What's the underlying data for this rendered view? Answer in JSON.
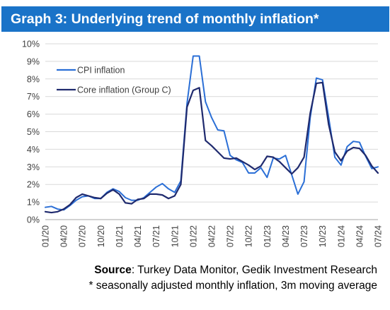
{
  "header": {
    "title": "Graph 3: Underlying trend of monthly inflation*"
  },
  "footer": {
    "source_label": "Source",
    "source_text": ": Turkey Data Monitor, Gedik Investment Research",
    "note": "* seasonally adjusted monthly inflation, 3m moving average"
  },
  "chart_data": {
    "type": "line",
    "title": "Graph 3: Underlying trend of monthly inflation*",
    "xlabel": "",
    "ylabel": "",
    "ylim": [
      0,
      10
    ],
    "y_ticks": [
      "0%",
      "1%",
      "2%",
      "3%",
      "4%",
      "5%",
      "6%",
      "7%",
      "8%",
      "9%",
      "10%"
    ],
    "x_ticks": [
      "01/20",
      "04/20",
      "07/20",
      "10/20",
      "01/21",
      "04/21",
      "07/21",
      "10/21",
      "01/22",
      "04/22",
      "07/22",
      "10/22",
      "01/23",
      "04/23",
      "07/23",
      "10/23",
      "01/24",
      "04/24",
      "07/24"
    ],
    "grid": "horizontal",
    "legend": "top-left",
    "x": [
      "01/20",
      "02/20",
      "03/20",
      "04/20",
      "05/20",
      "06/20",
      "07/20",
      "08/20",
      "09/20",
      "10/20",
      "11/20",
      "12/20",
      "01/21",
      "02/21",
      "03/21",
      "04/21",
      "05/21",
      "06/21",
      "07/21",
      "08/21",
      "09/21",
      "10/21",
      "11/21",
      "12/21",
      "01/22",
      "02/22",
      "03/22",
      "04/22",
      "05/22",
      "06/22",
      "07/22",
      "08/22",
      "09/22",
      "10/22",
      "11/22",
      "12/22",
      "01/23",
      "02/23",
      "03/23",
      "04/23",
      "05/23",
      "06/23",
      "07/23",
      "08/23",
      "09/23",
      "10/23",
      "11/23",
      "12/23",
      "01/24",
      "02/24",
      "03/24",
      "04/24",
      "05/24",
      "06/24",
      "07/24"
    ],
    "series": [
      {
        "name": "CPI inflation",
        "color": "#2b6fd6",
        "values": [
          0.7,
          0.75,
          0.6,
          0.55,
          0.8,
          1.1,
          1.3,
          1.35,
          1.2,
          1.2,
          1.55,
          1.75,
          1.6,
          1.25,
          1.1,
          1.1,
          1.25,
          1.55,
          1.85,
          2.05,
          1.75,
          1.55,
          2.2,
          6.6,
          9.3,
          9.3,
          6.7,
          5.8,
          5.1,
          5.05,
          3.65,
          3.4,
          3.25,
          2.65,
          2.65,
          2.95,
          2.4,
          3.5,
          3.45,
          3.65,
          2.55,
          1.45,
          2.15,
          5.8,
          8.05,
          7.95,
          5.8,
          3.55,
          3.1,
          4.15,
          4.45,
          4.4,
          3.6,
          2.9,
          3.0
        ]
      },
      {
        "name": "Core inflation (Group C)",
        "color": "#1f2a6e",
        "values": [
          0.45,
          0.4,
          0.45,
          0.6,
          0.85,
          1.25,
          1.45,
          1.35,
          1.25,
          1.2,
          1.5,
          1.7,
          1.45,
          0.95,
          0.9,
          1.15,
          1.2,
          1.45,
          1.45,
          1.4,
          1.2,
          1.35,
          2.0,
          6.4,
          7.35,
          7.5,
          4.5,
          4.2,
          3.85,
          3.5,
          3.45,
          3.5,
          3.3,
          3.1,
          2.85,
          3.05,
          3.6,
          3.55,
          3.3,
          2.95,
          2.6,
          2.95,
          3.55,
          6.05,
          7.75,
          7.8,
          5.4,
          3.85,
          3.35,
          3.9,
          4.1,
          4.05,
          3.65,
          3.05,
          2.65
        ]
      }
    ]
  }
}
